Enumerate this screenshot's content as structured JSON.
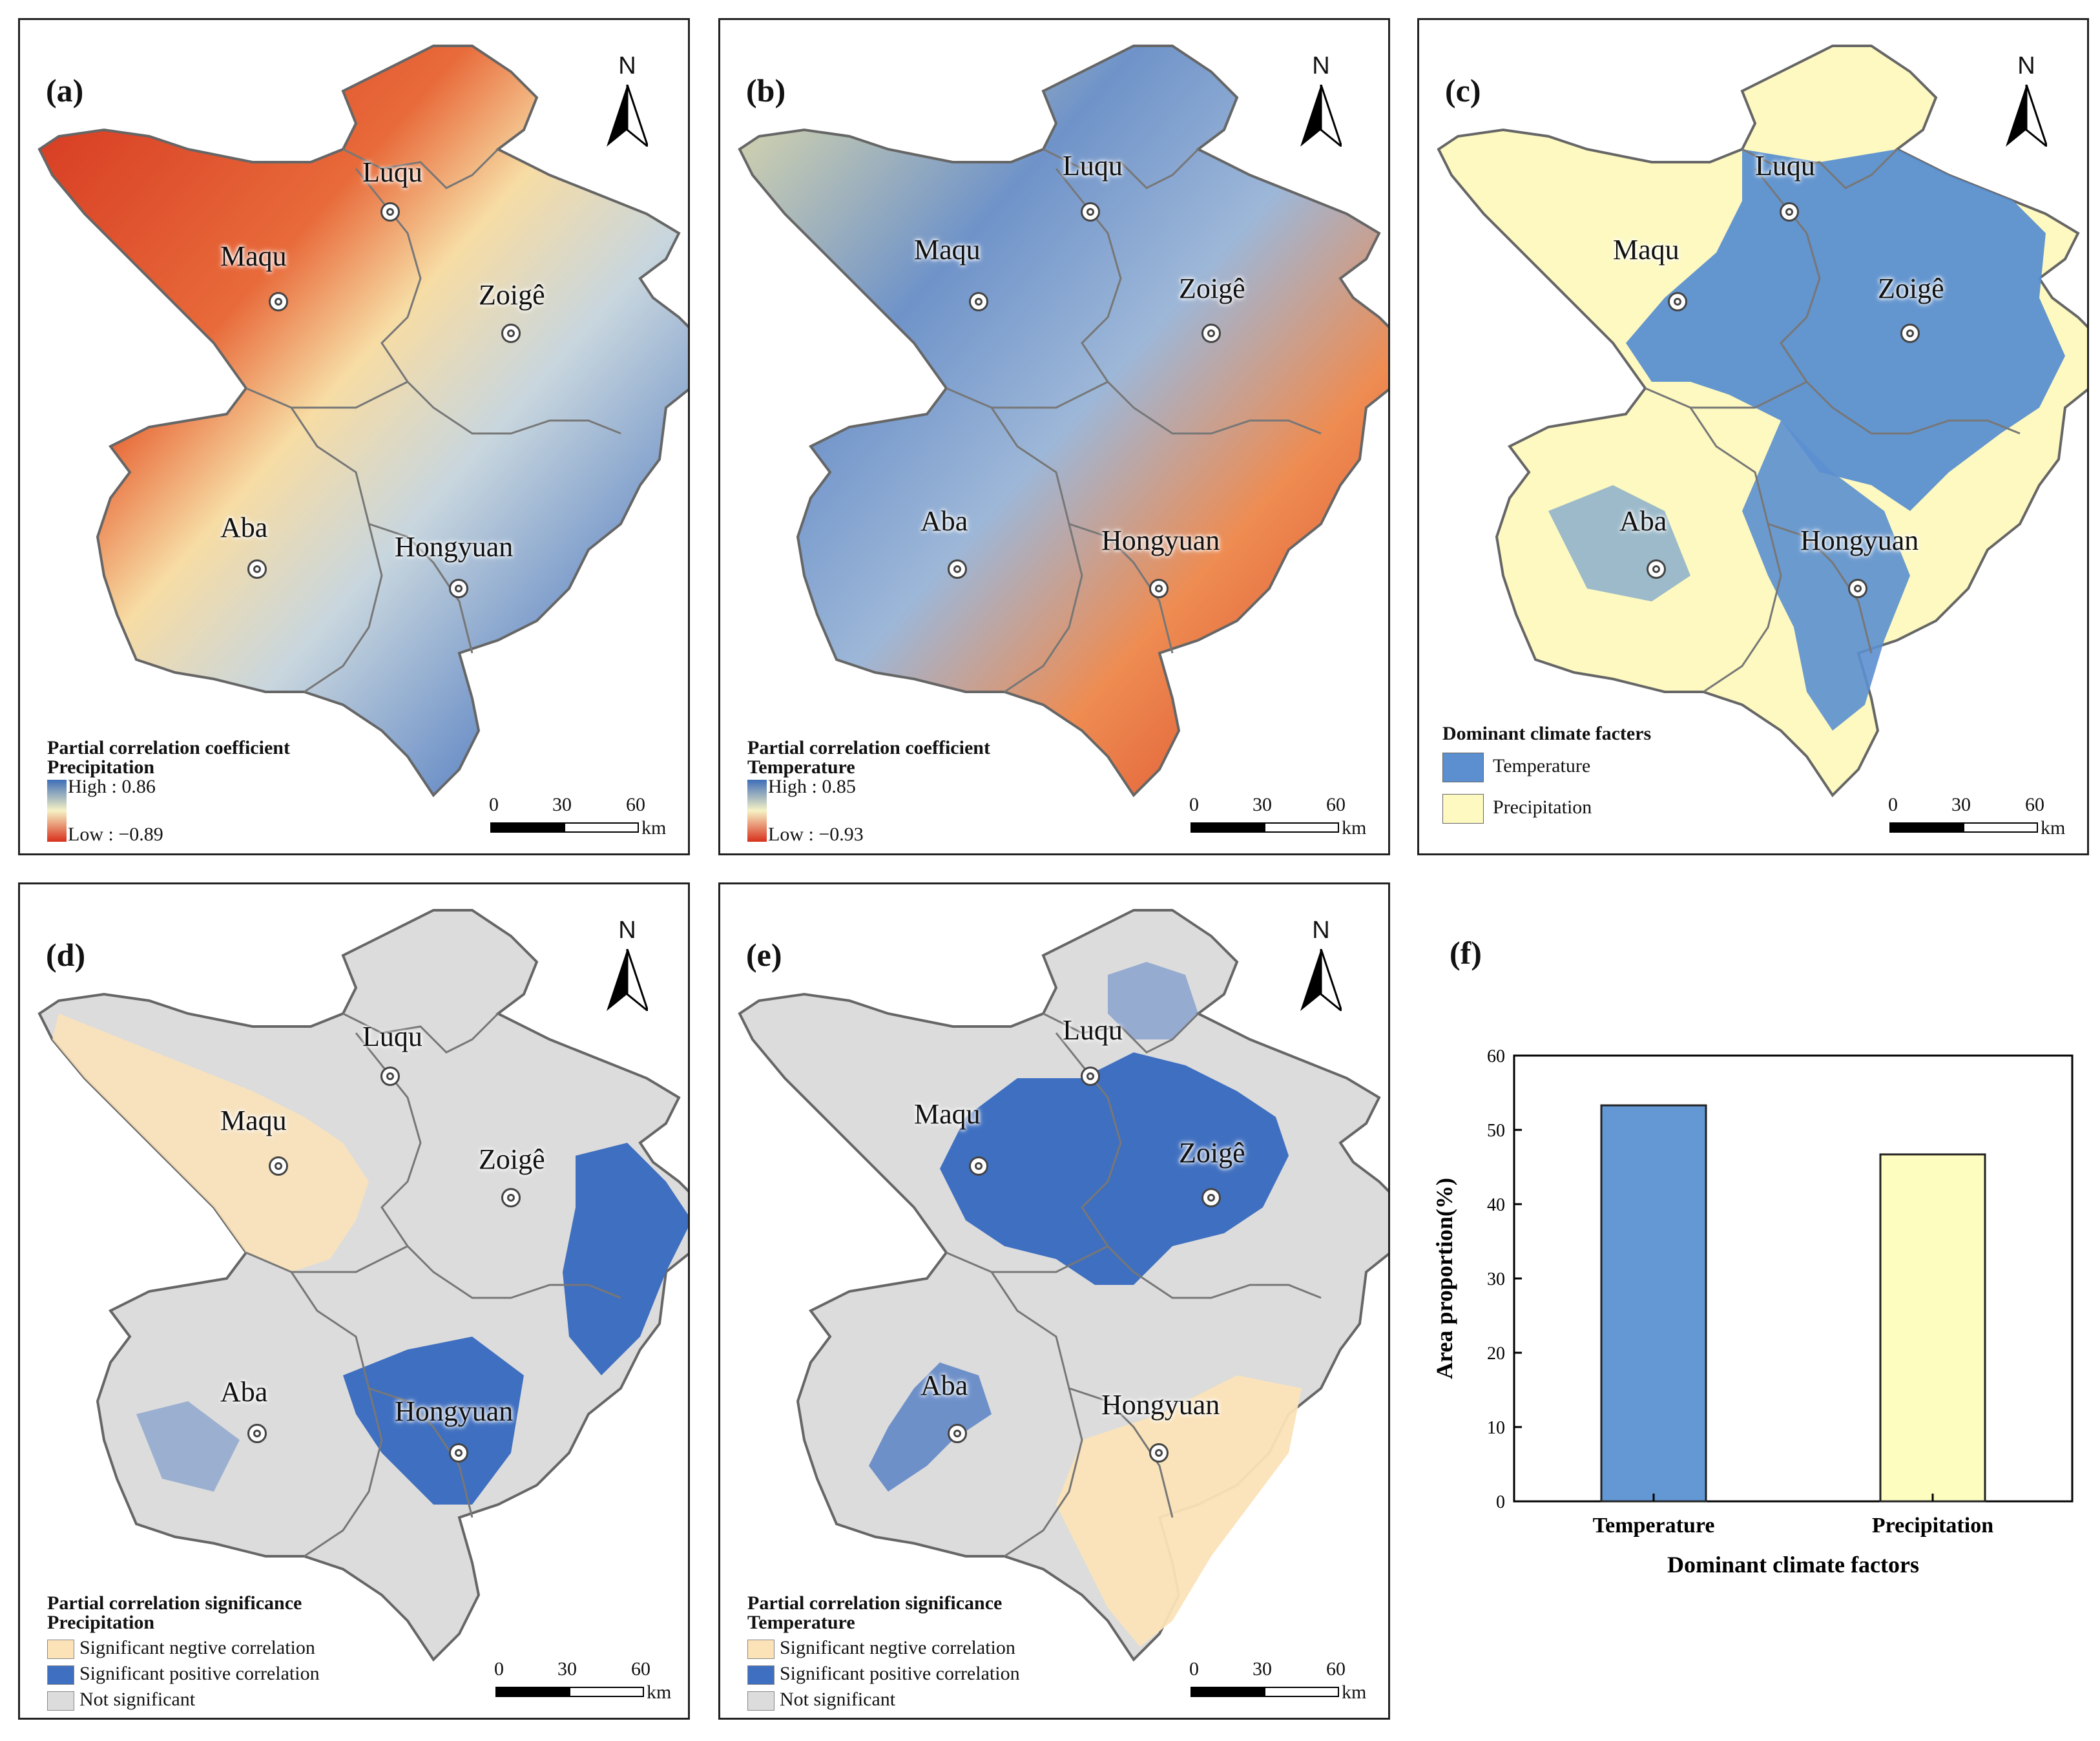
{
  "places": {
    "luqu": "Luqu",
    "maqu": "Maqu",
    "zoige": "Zoigê",
    "aba": "Aba",
    "hongyuan": "Hongyuan"
  },
  "north": "N",
  "scale": {
    "t0": "0",
    "t1": "30",
    "t2": "60",
    "unit": "km"
  },
  "panels": {
    "a": {
      "label": "(a)",
      "title": "Partial correlation coefficient",
      "sub": "Precipitation",
      "high": "High : 0.86",
      "low": "Low : −0.89"
    },
    "b": {
      "label": "(b)",
      "title": "Partial correlation coefficient",
      "sub": "Temperature",
      "high": "High : 0.85",
      "low": "Low : −0.93"
    },
    "c": {
      "label": "(c)",
      "title": "Dominant climate facters",
      "items": [
        "Temperature",
        "Precipitation"
      ]
    },
    "d": {
      "label": "(d)",
      "title": "Partial correlation significance",
      "sub": "Precipitation",
      "items": [
        "Significant  negtive correlation",
        "Significant  positive correlation",
        "Not significant"
      ]
    },
    "e": {
      "label": "(e)",
      "title": "Partial correlation significance",
      "sub": "Temperature",
      "items": [
        "Significant  negtive correlation",
        "Significant  positive correlation",
        "Not significant"
      ]
    },
    "f": {
      "label": "(f)"
    }
  },
  "colors": {
    "red": "#e0462c",
    "orange": "#f2a25e",
    "cream": "#f6e9b4",
    "lightblue": "#a9c4dc",
    "blue": "#4a78be",
    "tempBlue": "#5b8fd0",
    "precipYellow": "#fdf9c0",
    "negTan": "#fbe3b7",
    "posBlue": "#3f6fc0",
    "grey": "#dcdcdc"
  },
  "chart_data": {
    "type": "bar",
    "categories": [
      "Temperature",
      "Precipitation"
    ],
    "values": [
      53.3,
      46.7
    ],
    "colors": [
      "#6398d4",
      "#fdfdc0"
    ],
    "xlabel": "Dominant climate factors",
    "ylabel": "Area proportion(%)",
    "ylim": [
      0,
      60
    ],
    "yticks": [
      0,
      10,
      20,
      30,
      40,
      50,
      60
    ]
  }
}
